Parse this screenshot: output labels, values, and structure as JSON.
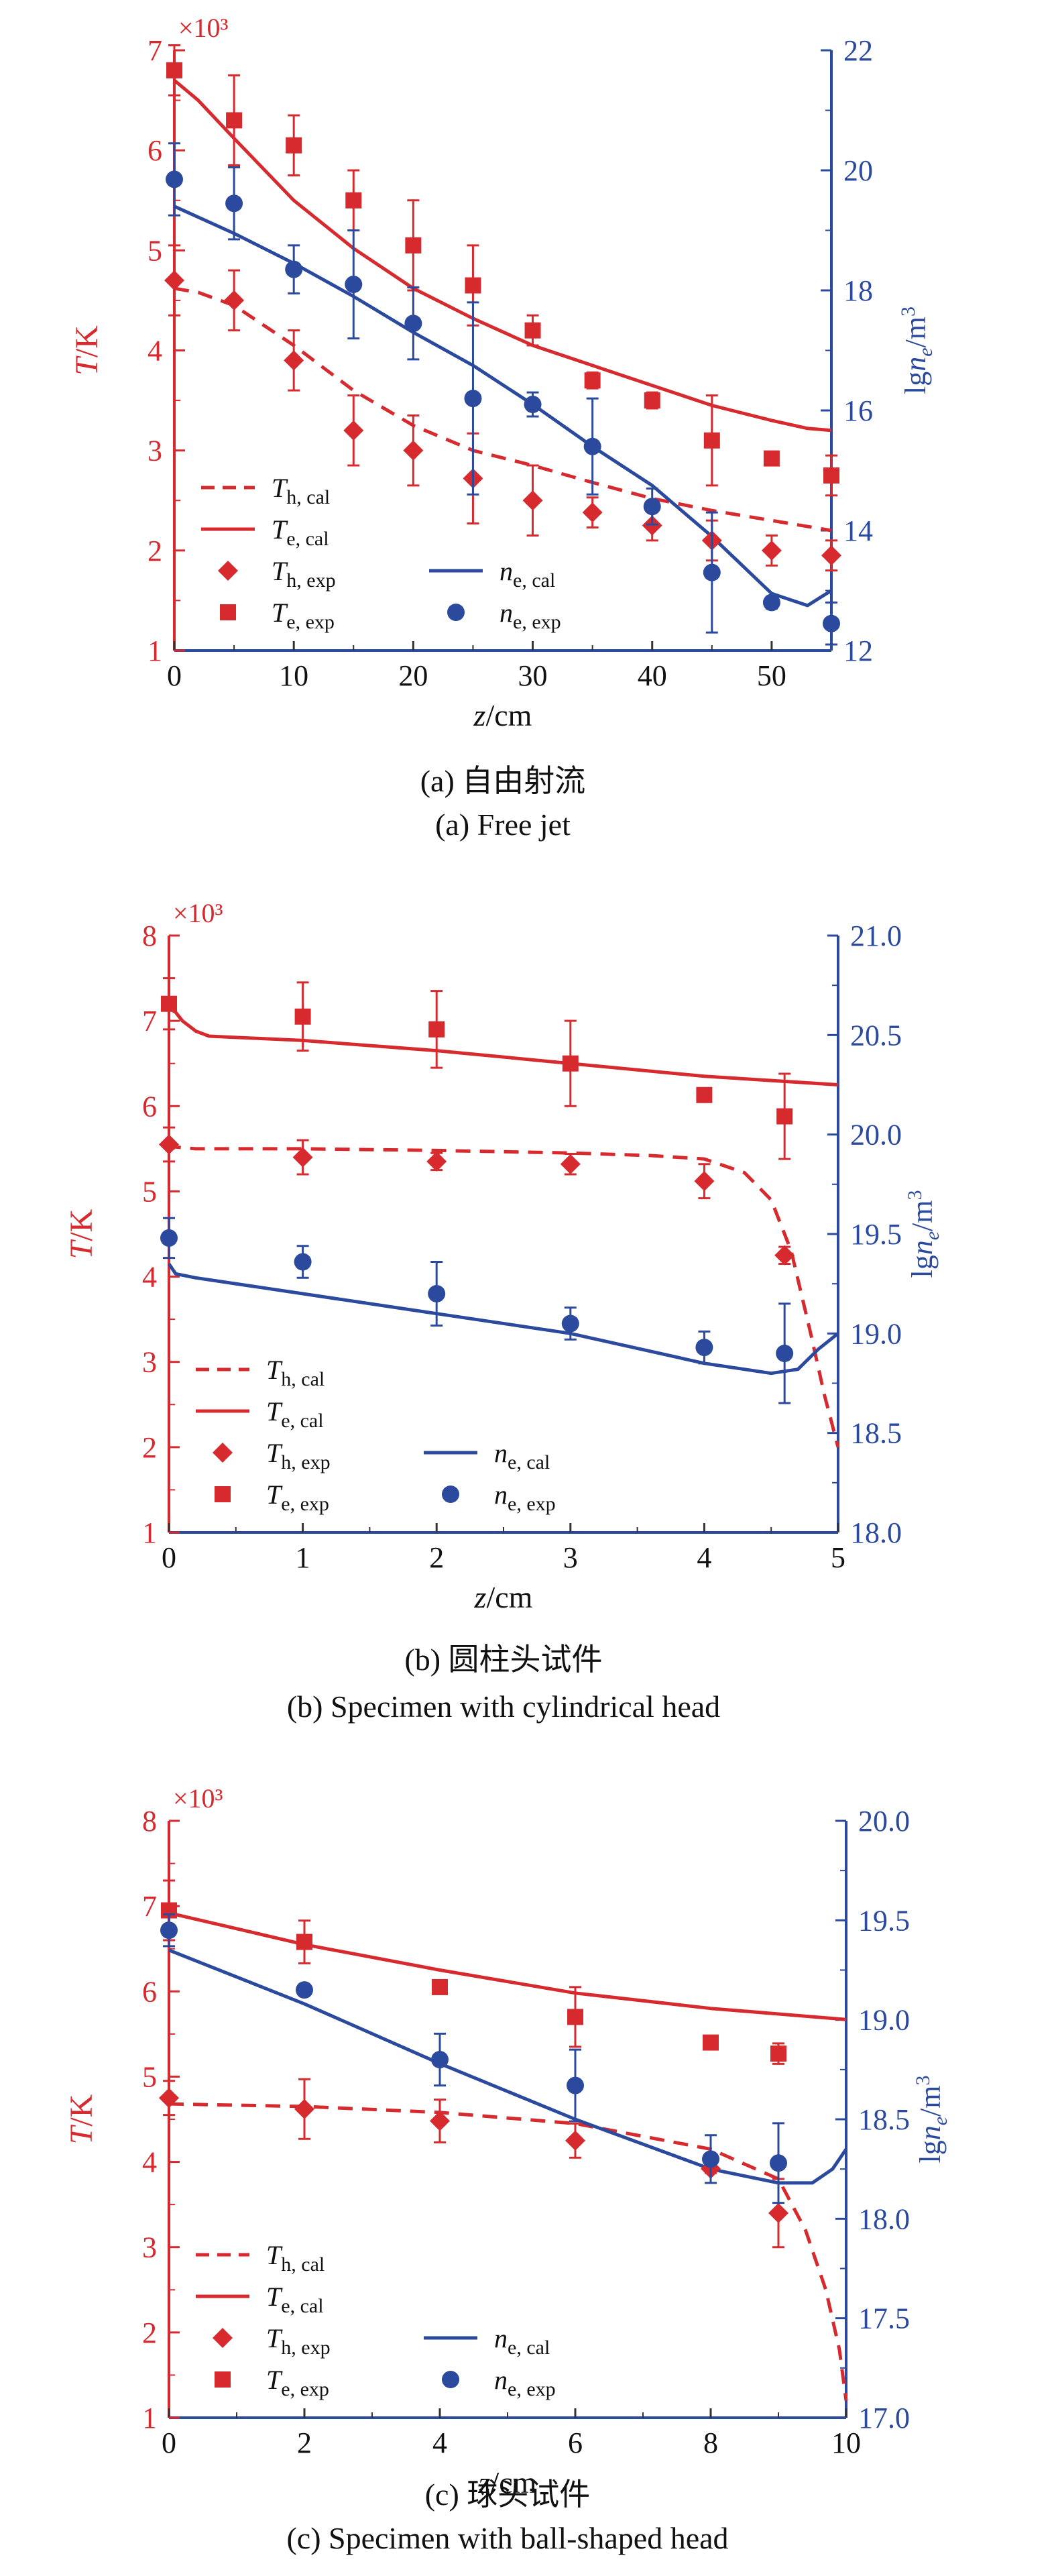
{
  "chart_data": [
    {
      "type": "line",
      "caption_cn": "(a) 自由射流",
      "caption_en": "(a) Free jet",
      "xlabel": "z/cm",
      "ylabel_left": "T/K",
      "ylabel_right": "lgn_e/m^3",
      "left_multiplier": "×10³",
      "xlim": [
        0,
        55
      ],
      "xticks": [
        0,
        10,
        20,
        30,
        40,
        50
      ],
      "ylim_left": [
        1,
        7
      ],
      "yticks_left": [
        1,
        2,
        3,
        4,
        5,
        6,
        7
      ],
      "ylim_right": [
        12,
        22
      ],
      "yticks_right": [
        12,
        14,
        16,
        18,
        20,
        22
      ],
      "legend_position": "bottom-left",
      "series": [
        {
          "name": "T_h, cal",
          "axis": "left",
          "style": "dashed",
          "color": "#d62a2f",
          "x": [
            0,
            2,
            5,
            10,
            15,
            20,
            25,
            30,
            35,
            40,
            45,
            50,
            55
          ],
          "y": [
            4.62,
            4.58,
            4.45,
            4.05,
            3.6,
            3.25,
            3.0,
            2.85,
            2.68,
            2.52,
            2.4,
            2.3,
            2.2
          ]
        },
        {
          "name": "T_e, cal",
          "axis": "left",
          "style": "solid",
          "color": "#d62a2f",
          "x": [
            0,
            2,
            5,
            10,
            15,
            20,
            25,
            30,
            35,
            40,
            45,
            50,
            53,
            55
          ],
          "y": [
            6.7,
            6.5,
            6.12,
            5.5,
            5.02,
            4.62,
            4.32,
            4.05,
            3.85,
            3.65,
            3.45,
            3.3,
            3.22,
            3.2
          ]
        },
        {
          "name": "n_e, cal",
          "axis": "right",
          "style": "solid",
          "color": "#2b4a9e",
          "x": [
            0,
            5,
            10,
            15,
            20,
            25,
            30,
            35,
            40,
            45,
            50,
            53,
            55
          ],
          "y": [
            19.4,
            18.95,
            18.45,
            17.9,
            17.3,
            16.75,
            16.1,
            15.4,
            14.75,
            13.9,
            12.95,
            12.75,
            13.0
          ]
        },
        {
          "name": "T_h, exp",
          "axis": "left",
          "marker": "diamond",
          "color": "#d62a2f",
          "x": [
            0,
            5,
            10,
            15,
            20,
            25,
            30,
            35,
            40,
            45,
            50,
            55
          ],
          "y": [
            4.7,
            4.5,
            3.9,
            3.2,
            3.0,
            2.72,
            2.5,
            2.38,
            2.25,
            2.1,
            2.0,
            1.95
          ],
          "err": [
            0.35,
            0.3,
            0.3,
            0.35,
            0.35,
            0.45,
            0.35,
            0.15,
            0.15,
            0.2,
            0.15,
            0.15
          ]
        },
        {
          "name": "T_e, exp",
          "axis": "left",
          "marker": "square",
          "color": "#d62a2f",
          "x": [
            0,
            5,
            10,
            15,
            20,
            25,
            30,
            35,
            40,
            45,
            50,
            55
          ],
          "y": [
            6.8,
            6.3,
            6.05,
            5.5,
            5.05,
            4.65,
            4.2,
            3.7,
            3.5,
            3.1,
            2.92,
            2.75
          ],
          "err": [
            0.25,
            0.45,
            0.3,
            0.3,
            0.45,
            0.4,
            0.15,
            0.08,
            0.08,
            0.45,
            0.04,
            0.2
          ]
        },
        {
          "name": "n_e, exp",
          "axis": "right",
          "marker": "circle",
          "color": "#2b4a9e",
          "x": [
            0,
            5,
            10,
            15,
            20,
            25,
            30,
            35,
            40,
            45,
            50,
            55
          ],
          "y": [
            19.85,
            19.45,
            18.35,
            18.1,
            17.45,
            16.2,
            16.1,
            15.4,
            14.4,
            13.3,
            12.8,
            12.45
          ],
          "err": [
            0.6,
            0.6,
            0.4,
            0.9,
            0.6,
            1.6,
            0.2,
            0.8,
            0.3,
            1.0,
            0.1,
            0.35
          ]
        }
      ]
    },
    {
      "type": "line",
      "caption_cn": "(b) 圆柱头试件",
      "caption_en": "(b) Specimen with cylindrical head",
      "xlabel": "z/cm",
      "ylabel_left": "T/K",
      "ylabel_right": "lgn_e/m^3",
      "left_multiplier": "×10³",
      "xlim": [
        0,
        5
      ],
      "xticks": [
        0,
        1,
        2,
        3,
        4,
        5
      ],
      "ylim_left": [
        1,
        8
      ],
      "yticks_left": [
        1,
        2,
        3,
        4,
        5,
        6,
        7,
        8
      ],
      "ylim_right": [
        18.0,
        21.0
      ],
      "yticks_right": [
        "18.0",
        "18.5",
        "19.0",
        "19.5",
        "20.0",
        "20.5",
        "21.0"
      ],
      "legend_position": "bottom-left",
      "series": [
        {
          "name": "T_h, cal",
          "axis": "left",
          "style": "dashed",
          "color": "#d62a2f",
          "x": [
            0,
            0.05,
            0.2,
            1,
            2,
            3,
            3.6,
            4.0,
            4.3,
            4.5,
            4.65,
            4.8,
            4.9,
            5.0
          ],
          "y": [
            5.6,
            5.52,
            5.5,
            5.5,
            5.48,
            5.45,
            5.42,
            5.38,
            5.22,
            4.9,
            4.3,
            3.3,
            2.6,
            2.0
          ]
        },
        {
          "name": "T_e, cal",
          "axis": "left",
          "style": "solid",
          "color": "#d62a2f",
          "x": [
            0,
            0.05,
            0.1,
            0.2,
            0.3,
            1,
            2,
            3,
            4,
            5
          ],
          "y": [
            7.15,
            7.1,
            7.0,
            6.88,
            6.82,
            6.77,
            6.65,
            6.5,
            6.35,
            6.25
          ]
        },
        {
          "name": "n_e, cal",
          "axis": "right",
          "style": "solid",
          "color": "#2b4a9e",
          "x": [
            0,
            0.05,
            0.2,
            1,
            2,
            3,
            4,
            4.5,
            4.7,
            4.85,
            5.0
          ],
          "y": [
            19.35,
            19.3,
            19.28,
            19.2,
            19.1,
            19.0,
            18.85,
            18.8,
            18.82,
            18.92,
            19.0
          ]
        },
        {
          "name": "T_h, exp",
          "axis": "left",
          "marker": "diamond",
          "color": "#d62a2f",
          "x": [
            0,
            1,
            2,
            3,
            4,
            4.6
          ],
          "y": [
            5.55,
            5.4,
            5.35,
            5.32,
            5.12,
            4.25
          ],
          "err": [
            0.2,
            0.2,
            0.1,
            0.12,
            0.2,
            0.1
          ]
        },
        {
          "name": "T_e, exp",
          "axis": "left",
          "marker": "square",
          "color": "#d62a2f",
          "x": [
            0,
            1,
            2,
            3,
            4,
            4.6
          ],
          "y": [
            7.2,
            7.05,
            6.9,
            6.5,
            6.13,
            5.88
          ],
          "err": [
            0.3,
            0.4,
            0.45,
            0.5,
            0.08,
            0.5
          ]
        },
        {
          "name": "n_e, exp",
          "axis": "right",
          "marker": "circle",
          "color": "#2b4a9e",
          "x": [
            0,
            1,
            2,
            3,
            4,
            4.6
          ],
          "y": [
            19.48,
            19.36,
            19.2,
            19.05,
            18.93,
            18.9
          ],
          "err": [
            0.1,
            0.08,
            0.16,
            0.08,
            0.08,
            0.25
          ]
        }
      ]
    },
    {
      "type": "line",
      "caption_cn": "(c) 球头试件",
      "caption_en": "(c) Specimen with ball-shaped head",
      "xlabel": "z/cm",
      "ylabel_left": "T/K",
      "ylabel_right": "lgn_e/m^3",
      "left_multiplier": "×10³",
      "xlim": [
        0,
        10
      ],
      "xticks": [
        0,
        2,
        4,
        6,
        8,
        10
      ],
      "ylim_left": [
        1,
        8
      ],
      "yticks_left": [
        1,
        2,
        3,
        4,
        5,
        6,
        7,
        8
      ],
      "ylim_right": [
        17.0,
        20.0
      ],
      "yticks_right": [
        "17.0",
        "17.5",
        "18.0",
        "18.5",
        "19.0",
        "19.5",
        "20.0"
      ],
      "legend_position": "bottom-left",
      "series": [
        {
          "name": "T_h, cal",
          "axis": "left",
          "style": "dashed",
          "color": "#d62a2f",
          "x": [
            0,
            2,
            4,
            6,
            8,
            9,
            9.4,
            9.7,
            9.9,
            10.0
          ],
          "y": [
            4.68,
            4.65,
            4.58,
            4.45,
            4.15,
            3.8,
            3.2,
            2.5,
            1.8,
            1.2
          ]
        },
        {
          "name": "T_e, cal",
          "axis": "left",
          "style": "solid",
          "color": "#d62a2f",
          "x": [
            0,
            2,
            4,
            6,
            8,
            10
          ],
          "y": [
            6.92,
            6.55,
            6.25,
            5.98,
            5.8,
            5.67
          ]
        },
        {
          "name": "n_e, cal",
          "axis": "right",
          "style": "solid",
          "color": "#2b4a9e",
          "x": [
            0,
            2,
            4,
            6,
            8,
            9.0,
            9.5,
            9.8,
            10.0
          ],
          "y": [
            19.35,
            19.08,
            18.78,
            18.5,
            18.25,
            18.18,
            18.18,
            18.25,
            18.35
          ]
        },
        {
          "name": "T_h, exp",
          "axis": "left",
          "marker": "diamond",
          "color": "#d62a2f",
          "x": [
            0,
            2,
            4,
            6,
            8,
            9
          ],
          "y": [
            4.75,
            4.62,
            4.48,
            4.25,
            3.92,
            3.4
          ],
          "err": [
            0.2,
            0.35,
            0.25,
            0.2,
            0.05,
            0.4
          ]
        },
        {
          "name": "T_e, exp",
          "axis": "left",
          "marker": "square",
          "color": "#d62a2f",
          "x": [
            0,
            2,
            4,
            6,
            8,
            9
          ],
          "y": [
            6.95,
            6.58,
            6.05,
            5.7,
            5.4,
            5.27
          ],
          "err": [
            0.35,
            0.25,
            0.07,
            0.35,
            0.03,
            0.12
          ]
        },
        {
          "name": "n_e, exp",
          "axis": "right",
          "marker": "circle",
          "color": "#2b4a9e",
          "x": [
            0,
            2,
            4,
            6,
            8,
            9
          ],
          "y": [
            19.45,
            19.15,
            18.8,
            18.67,
            18.3,
            18.28
          ],
          "err": [
            0.08,
            0.02,
            0.13,
            0.18,
            0.12,
            0.2
          ]
        }
      ]
    }
  ]
}
